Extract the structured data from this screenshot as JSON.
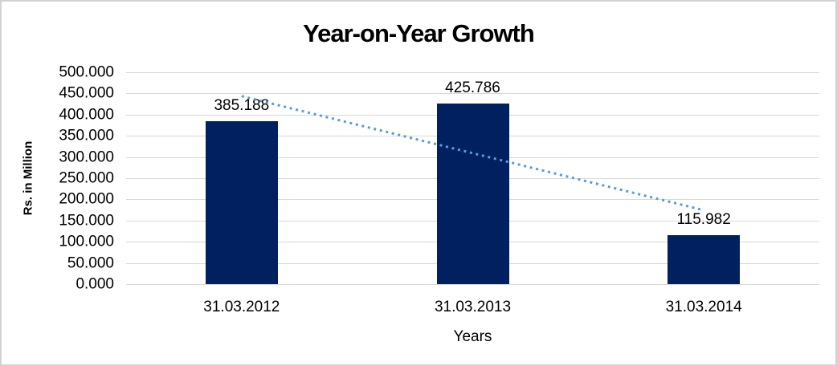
{
  "chart_data": {
    "type": "bar",
    "title": "Year-on-Year Growth",
    "xlabel": "Years",
    "ylabel": "Rs. in Million",
    "categories": [
      "31.03.2012",
      "31.03.2013",
      "31.03.2014"
    ],
    "values": [
      385.188,
      425.786,
      115.982
    ],
    "data_labels": [
      "385.188",
      "425.786",
      "115.982"
    ],
    "ylim": [
      0,
      500
    ],
    "ytick_labels": [
      "500.000",
      "450.000",
      "400.000",
      "350.000",
      "300.000",
      "250.000",
      "200.000",
      "150.000",
      "100.000",
      "50.000",
      "0.000"
    ],
    "grid": true,
    "legend": "none",
    "colors": {
      "bar": "#002060",
      "gridline": "#d9d9d9",
      "trendline": "#5b9bd5",
      "text": "#000000",
      "chart_border": "#d2d2d2"
    },
    "trendline": {
      "type": "linear",
      "style": "dotted",
      "start_value": 443.6,
      "end_value": 174.4
    }
  }
}
